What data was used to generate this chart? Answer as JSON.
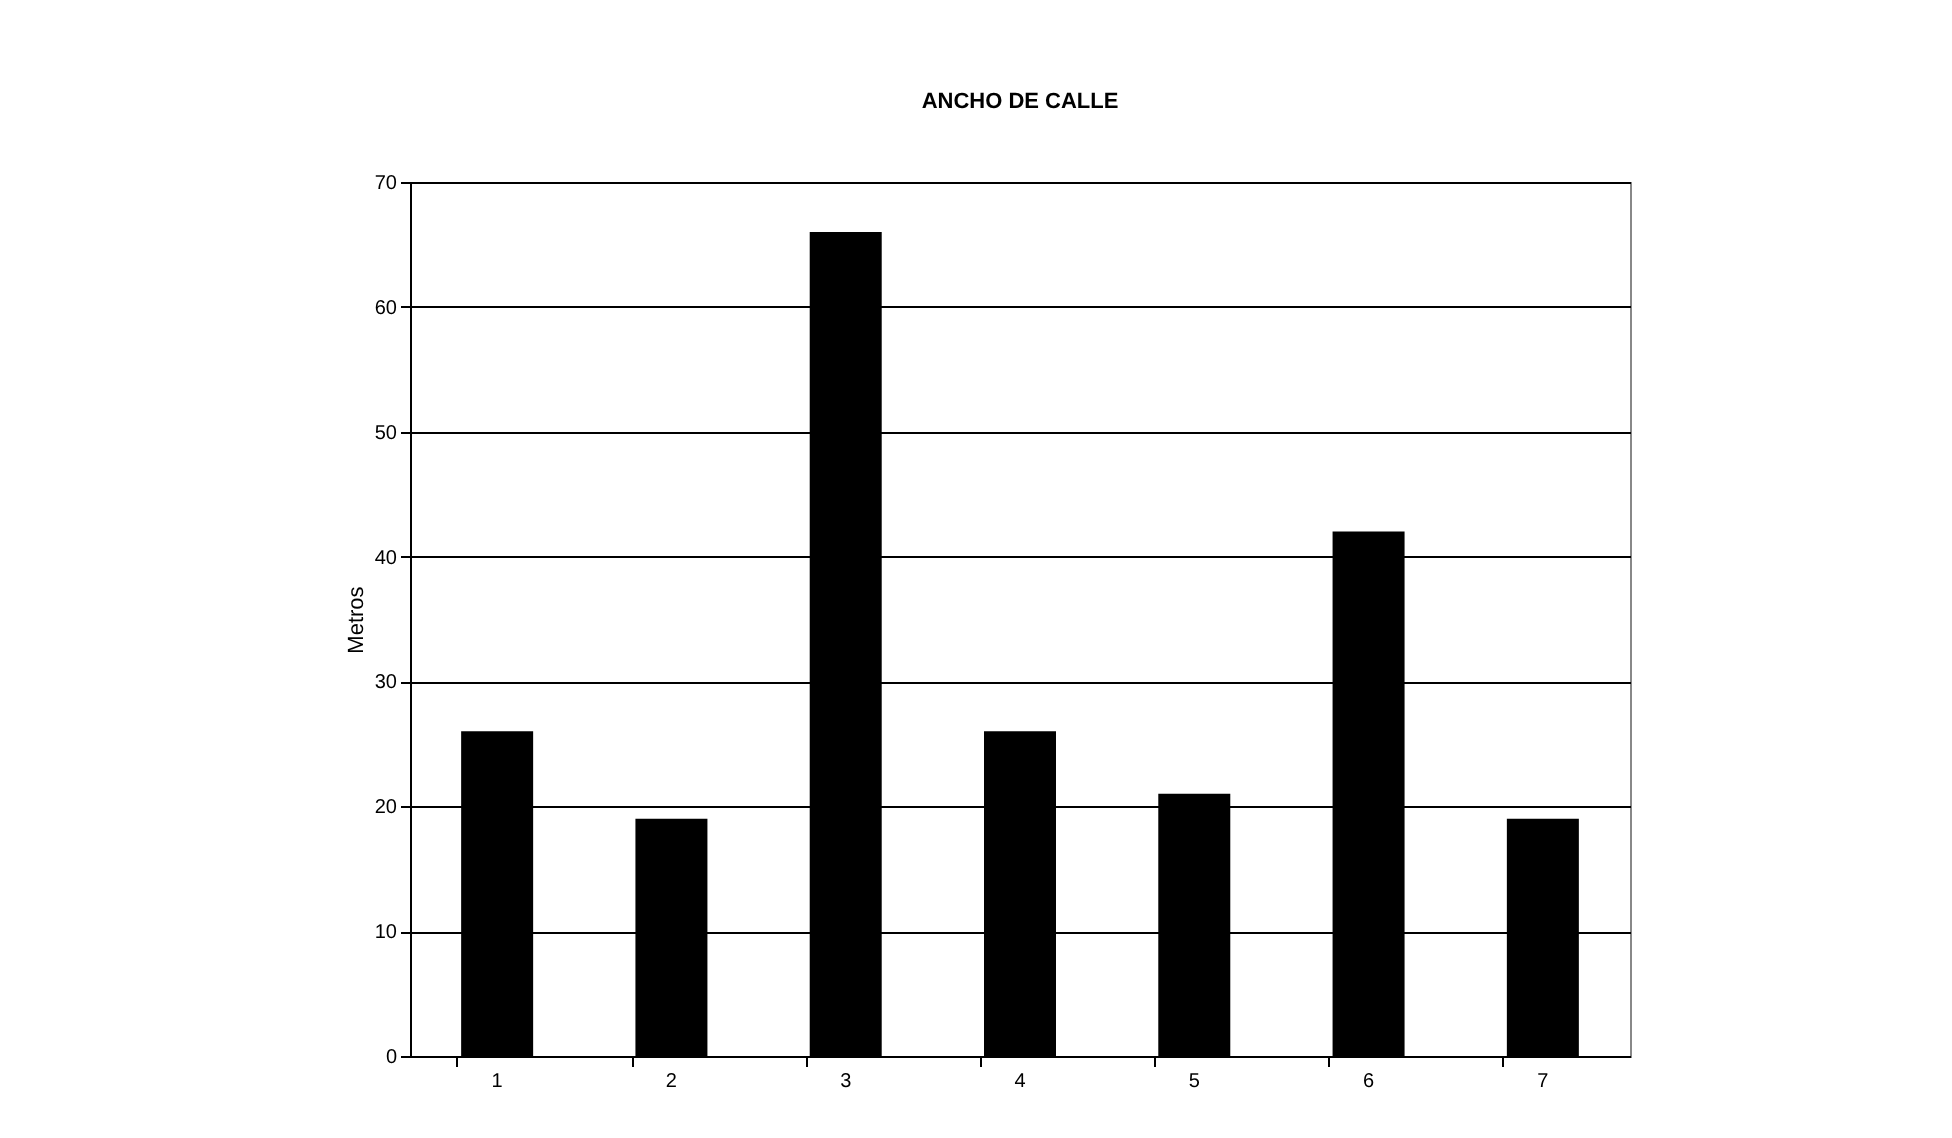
{
  "chart_data": {
    "type": "bar",
    "title": "ANCHO DE CALLE",
    "ylabel": "Metros",
    "categories": [
      "1",
      "2",
      "3",
      "4",
      "5",
      "6",
      "7"
    ],
    "values": [
      26,
      19,
      66,
      26,
      21,
      42,
      19
    ],
    "color": "#000000",
    "ylim": [
      0,
      70
    ],
    "yticks": [
      0,
      10,
      20,
      30,
      40,
      50,
      60,
      70
    ],
    "grid": "y"
  }
}
